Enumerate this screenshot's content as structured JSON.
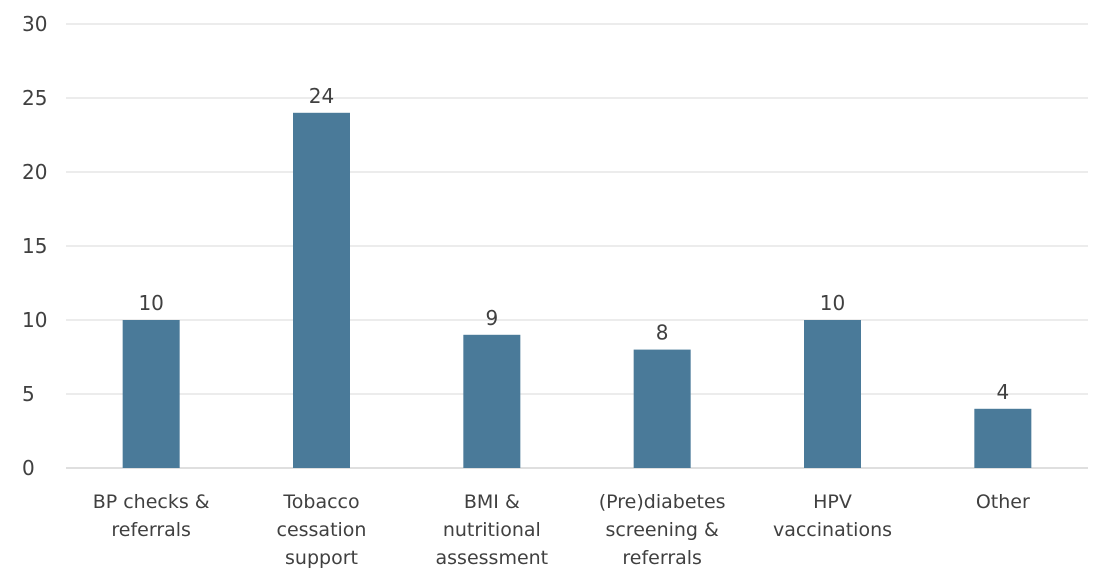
{
  "chart_data": {
    "type": "bar",
    "categories": [
      [
        "BP checks &",
        "referrals"
      ],
      [
        "Tobacco",
        "cessation",
        "support"
      ],
      [
        "BMI &",
        "nutritional",
        "assessment"
      ],
      [
        "(Pre)diabetes",
        "screening &",
        "referrals"
      ],
      [
        "HPV",
        "vaccinations"
      ],
      [
        "Other"
      ]
    ],
    "values": [
      10,
      24,
      9,
      8,
      10,
      4
    ],
    "data_labels": [
      "10",
      "24",
      "9",
      "8",
      "10",
      "4"
    ],
    "ylim": [
      0,
      30
    ],
    "yticks": [
      0,
      5,
      10,
      15,
      20,
      25,
      30
    ],
    "grid": true,
    "legend": "none",
    "bar_color": "#4a7a99",
    "title": "",
    "xlabel": "",
    "ylabel": ""
  }
}
